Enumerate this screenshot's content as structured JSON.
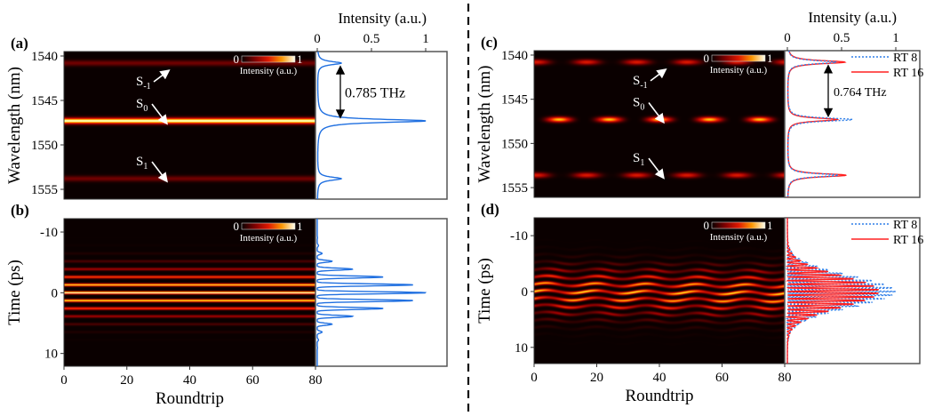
{
  "chart_data": [
    {
      "panel": "(a)",
      "type": "heatmap",
      "ylabel": "Wavelength (nm)",
      "xlabel": "",
      "xlim": [
        0,
        80
      ],
      "ylim": [
        1539.5,
        1556.1
      ],
      "yticks": [
        "1540",
        "1545",
        "1550",
        "1555"
      ],
      "colorbar": {
        "min": "0",
        "max": "1",
        "label": "Intensity (a.u.)",
        "colormap": "hot"
      },
      "bands": [
        {
          "center": 1540.8,
          "value": 0.22
        },
        {
          "center": 1547.3,
          "value": 1.0
        },
        {
          "center": 1553.8,
          "value": 0.22
        }
      ],
      "side_plot": {
        "type": "line",
        "xlabel": "Intensity (a.u.)",
        "xticks": [
          "0",
          "0.5",
          "1"
        ],
        "xlim": [
          0,
          1.2
        ],
        "color": "#1f6fe0",
        "peaks": [
          {
            "wavelength": 1540.8,
            "intensity": 0.22
          },
          {
            "wavelength": 1547.3,
            "intensity": 1.0
          },
          {
            "wavelength": 1553.8,
            "intensity": 0.22
          }
        ]
      },
      "annotations": {
        "spacing": "0.785 THz",
        "labels": [
          {
            "base": "S",
            "sub": "-1"
          },
          {
            "base": "S",
            "sub": "0"
          },
          {
            "base": "S",
            "sub": "1"
          }
        ]
      }
    },
    {
      "panel": "(b)",
      "type": "heatmap",
      "ylabel": "Time (ps)",
      "xlabel": "Roundtrip",
      "xlim": [
        0,
        80
      ],
      "xticks": [
        "0",
        "20",
        "40",
        "60",
        "80"
      ],
      "ylim": [
        -12.2,
        12.1
      ],
      "yticks": [
        "-10",
        "0",
        "10"
      ],
      "colorbar": {
        "min": "0",
        "max": "1",
        "label": "Intensity (a.u.)",
        "colormap": "hot"
      },
      "fringe_period_ps": 1.3,
      "envelope_sigma_ps": 2.6,
      "side_plot": {
        "type": "line",
        "xlim": [
          0,
          1.2
        ],
        "color": "#1f6fe0",
        "peaks": [
          {
            "time": -5.2,
            "intensity": 0.2
          },
          {
            "time": -3.9,
            "intensity": 0.36
          },
          {
            "time": -2.6,
            "intensity": 0.6
          },
          {
            "time": -1.3,
            "intensity": 0.88
          },
          {
            "time": 0,
            "intensity": 1.0
          },
          {
            "time": 1.3,
            "intensity": 0.88
          },
          {
            "time": 2.6,
            "intensity": 0.6
          },
          {
            "time": 3.9,
            "intensity": 0.36
          },
          {
            "time": 5.2,
            "intensity": 0.2
          }
        ]
      }
    },
    {
      "panel": "(c)",
      "type": "heatmap",
      "ylabel": "Wavelength (nm)",
      "xlabel": "",
      "xlim": [
        0,
        80
      ],
      "ylim": [
        1539.5,
        1556.1
      ],
      "yticks": [
        "1540",
        "1545",
        "1550",
        "1555"
      ],
      "colorbar": {
        "min": "0",
        "max": "1",
        "label": "Intensity (a.u.)",
        "colormap": "hot"
      },
      "bands": [
        {
          "center": 1540.8,
          "value": 0.5
        },
        {
          "center": 1547.3,
          "value": 0.85
        },
        {
          "center": 1553.6,
          "value": 0.5
        }
      ],
      "oscillation_period_roundtrips": 16,
      "side_plot": {
        "type": "line",
        "xlabel": "Intensity (a.u.)",
        "xticks": [
          "0",
          "0.5",
          "1"
        ],
        "xlim": [
          0,
          1.2
        ],
        "series": [
          {
            "name": "RT 8",
            "color": "#2f7fe8",
            "style": "dotted",
            "peaks": [
              {
                "wavelength": 1540.8,
                "intensity": 0.45
              },
              {
                "wavelength": 1547.3,
                "intensity": 0.6
              },
              {
                "wavelength": 1553.6,
                "intensity": 0.47
              }
            ]
          },
          {
            "name": "RT 16",
            "color": "#ff2020",
            "style": "solid",
            "peaks": [
              {
                "wavelength": 1540.8,
                "intensity": 0.53
              },
              {
                "wavelength": 1547.3,
                "intensity": 0.46
              },
              {
                "wavelength": 1553.6,
                "intensity": 0.54
              }
            ]
          }
        ]
      },
      "annotations": {
        "spacing": "0.764 THz",
        "labels": [
          {
            "base": "S",
            "sub": "-1"
          },
          {
            "base": "S",
            "sub": "0"
          },
          {
            "base": "S",
            "sub": "1"
          }
        ]
      }
    },
    {
      "panel": "(d)",
      "type": "heatmap",
      "ylabel": "Time (ps)",
      "xlabel": "Roundtrip",
      "xlim": [
        0,
        80
      ],
      "xticks": [
        "0",
        "20",
        "40",
        "60",
        "80"
      ],
      "ylim": [
        -13.2,
        12.9
      ],
      "yticks": [
        "-10",
        "0",
        "10"
      ],
      "colorbar": {
        "min": "0",
        "max": "1",
        "label": "Intensity (a.u.)",
        "colormap": "hot"
      },
      "fringe_period_ps": 1.3,
      "envelope_sigma_ps": 2.8,
      "side_plot": {
        "type": "line",
        "xlim": [
          0,
          1.2
        ],
        "series": [
          {
            "name": "RT 8",
            "color": "#2f7fe8",
            "style": "dotted",
            "max_intensity": 1.0
          },
          {
            "name": "RT 16",
            "color": "#ff2020",
            "style": "solid",
            "max_intensity": 0.85
          }
        ]
      }
    }
  ]
}
